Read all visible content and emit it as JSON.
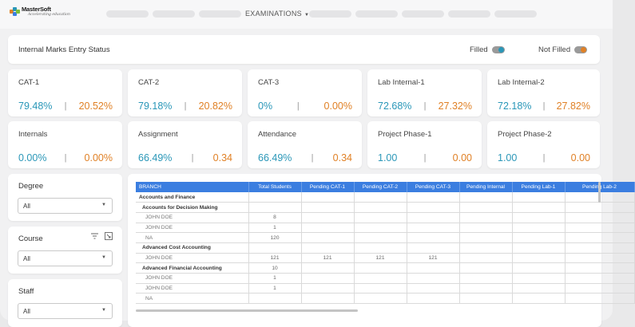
{
  "nav": {
    "brand": "MasterSoft",
    "tagline": "Accelerating education",
    "active_menu": "EXAMINATIONS"
  },
  "status_bar": {
    "title": "Internal Marks Entry Status",
    "legend_filled": "Filled",
    "legend_not_filled": "Not Filled",
    "filled_color": "#2a97b8",
    "not_filled_color": "#e08126"
  },
  "stats": [
    {
      "label": "CAT-1",
      "filled": "79.48%",
      "not_filled": "20.52%"
    },
    {
      "label": "CAT-2",
      "filled": "79.18%",
      "not_filled": "20.82%"
    },
    {
      "label": "CAT-3",
      "filled": "0%",
      "not_filled": "0.00%"
    },
    {
      "label": "Lab Internal-1",
      "filled": "72.68%",
      "not_filled": "27.32%"
    },
    {
      "label": "Lab Internal-2",
      "filled": "72.18%",
      "not_filled": "27.82%"
    },
    {
      "label": "Internals",
      "filled": "0.00%",
      "not_filled": "0.00%"
    },
    {
      "label": "Assignment",
      "filled": "66.49%",
      "not_filled": "0.34"
    },
    {
      "label": "Attendance",
      "filled": "66.49%",
      "not_filled": "0.34"
    },
    {
      "label": "Project Phase-1",
      "filled": "1.00",
      "not_filled": "0.00"
    },
    {
      "label": "Project Phase-2",
      "filled": "1.00",
      "not_filled": "0.00"
    }
  ],
  "separator": "|",
  "filters": {
    "degree": {
      "label": "Degree",
      "value": "All"
    },
    "course": {
      "label": "Course",
      "value": "All"
    },
    "staff": {
      "label": "Staff",
      "value": "All"
    }
  },
  "table": {
    "headers": [
      "BRANCH",
      "Total Students",
      "Pending CAT-1",
      "Pending CAT-2",
      "Pending CAT-3",
      "Pending Internal",
      "Pending Lab-1",
      "Pending Lab-2"
    ],
    "rows": [
      {
        "kind": "branch",
        "cells": [
          "Accounts and Finance",
          "",
          "",
          "",
          "",
          "",
          "",
          ""
        ]
      },
      {
        "kind": "course",
        "cells": [
          "Accounts for Decision Making",
          "",
          "",
          "",
          "",
          "",
          "",
          ""
        ]
      },
      {
        "kind": "staff",
        "cells": [
          "JOHN DOE",
          "8",
          "",
          "",
          "",
          "",
          "",
          ""
        ]
      },
      {
        "kind": "staff",
        "cells": [
          "JOHN DOE",
          "1",
          "",
          "",
          "",
          "",
          "",
          ""
        ]
      },
      {
        "kind": "staff",
        "cells": [
          "NA",
          "120",
          "",
          "",
          "",
          "",
          "",
          ""
        ]
      },
      {
        "kind": "course",
        "cells": [
          "Advanced Cost Accounting",
          "",
          "",
          "",
          "",
          "",
          "",
          ""
        ]
      },
      {
        "kind": "staff",
        "cells": [
          "JOHN DOE",
          "121",
          "121",
          "121",
          "121",
          "",
          "",
          ""
        ]
      },
      {
        "kind": "course",
        "cells": [
          "Advanced Financial Accounting",
          "10",
          "",
          "",
          "",
          "",
          "",
          ""
        ]
      },
      {
        "kind": "staff",
        "cells": [
          "JOHN DOE",
          "1",
          "",
          "",
          "",
          "",
          "",
          ""
        ]
      },
      {
        "kind": "staff",
        "cells": [
          "JOHN DOE",
          "1",
          "",
          "",
          "",
          "",
          "",
          ""
        ]
      },
      {
        "kind": "staff",
        "cells": [
          "NA",
          "",
          "",
          "",
          "",
          "",
          "",
          ""
        ]
      }
    ]
  }
}
